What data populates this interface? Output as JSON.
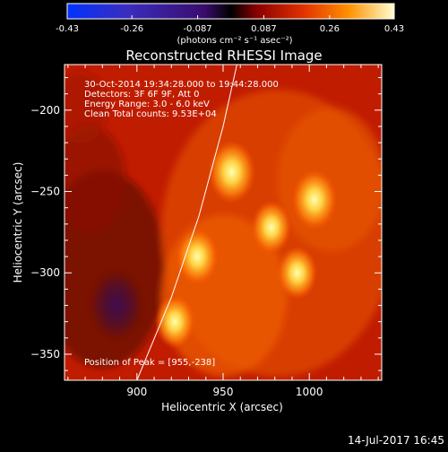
{
  "colorbar": {
    "ticks": [
      "-0.43",
      "-0.26",
      "-0.087",
      "0.087",
      "0.26",
      "0.43"
    ],
    "min": -0.43,
    "max": 0.43,
    "unit_label": "(photons cm⁻² s⁻¹ asec⁻²)"
  },
  "chart_data": {
    "type": "heatmap",
    "title": "Reconstructed RHESSI Image",
    "xlabel": "Heliocentric X (arcsec)",
    "ylabel": "Heliocentric Y (arcsec)",
    "xlim": [
      858,
      1042
    ],
    "ylim": [
      -366,
      -172
    ],
    "x_ticks": [
      {
        "value": 900,
        "label": "900"
      },
      {
        "value": 950,
        "label": "950"
      },
      {
        "value": 1000,
        "label": "1000"
      }
    ],
    "y_ticks": [
      {
        "value": -200,
        "label": "−200"
      },
      {
        "value": -250,
        "label": "−250"
      },
      {
        "value": -300,
        "label": "−300"
      },
      {
        "value": -350,
        "label": "−350"
      }
    ],
    "annotations": [
      "30-Oct-2014 19:34:28.000 to 19:44:28.000",
      "Detectors: 3F 6F 9F, Att 0",
      "Energy Range: 3.0 - 6.0 keV",
      "Clean     Total counts: 9.53E+04"
    ],
    "peak_label": "Position of Peak = [955,-238]",
    "peak": [
      955,
      -238
    ],
    "sources": [
      {
        "x": 955,
        "y": -238,
        "value": 0.43
      },
      {
        "x": 1003,
        "y": -255,
        "value": 0.4
      },
      {
        "x": 935,
        "y": -290,
        "value": 0.36
      },
      {
        "x": 978,
        "y": -272,
        "value": 0.33
      },
      {
        "x": 993,
        "y": -300,
        "value": 0.33
      },
      {
        "x": 922,
        "y": -330,
        "value": 0.33
      }
    ],
    "limb_curve": [
      [
        900,
        -366
      ],
      [
        920,
        -315
      ],
      [
        936,
        -265
      ],
      [
        950,
        -210
      ],
      [
        958,
        -172
      ]
    ]
  },
  "footer": {
    "timestamp": "14-Jul-2017 16:45"
  }
}
